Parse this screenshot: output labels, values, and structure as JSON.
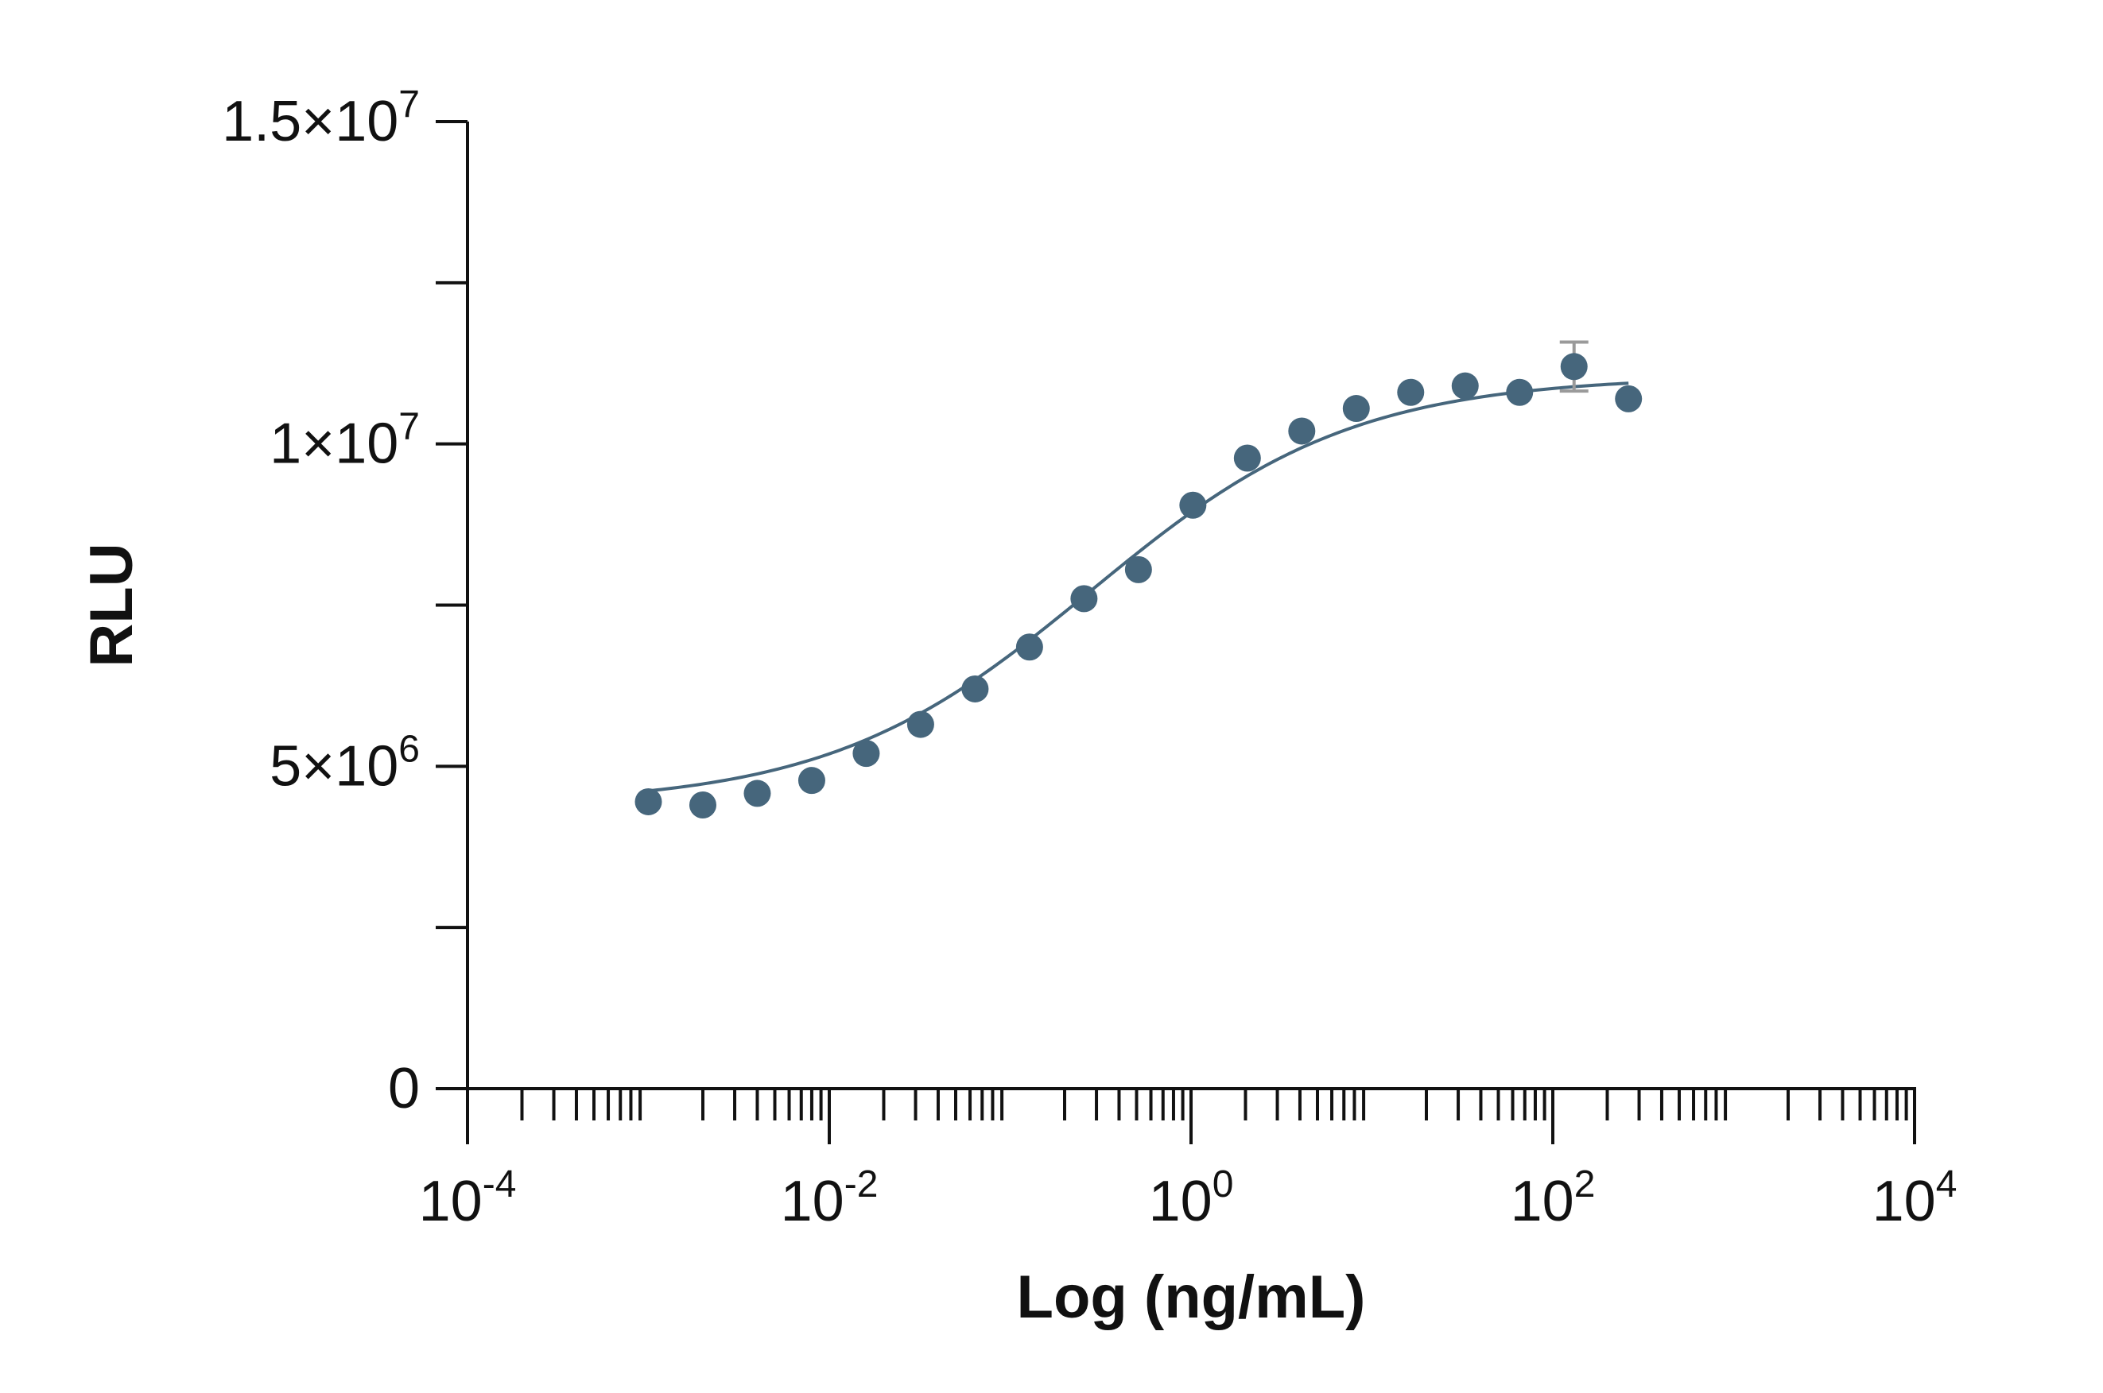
{
  "chart_data": {
    "type": "scatter",
    "title": "",
    "xlabel": "Log (ng/mL)",
    "ylabel": "RLU",
    "x_scale": "log",
    "xlim": [
      0.0001,
      10000
    ],
    "ylim": [
      0,
      15000000
    ],
    "grid": false,
    "legend": "none",
    "x_ticks": [
      {
        "value": 0.0001,
        "base": "10",
        "exp": "-4"
      },
      {
        "value": 0.01,
        "base": "10",
        "exp": "-2"
      },
      {
        "value": 1,
        "base": "10",
        "exp": "0"
      },
      {
        "value": 100,
        "base": "10",
        "exp": "2"
      },
      {
        "value": 10000,
        "base": "10",
        "exp": "4"
      }
    ],
    "y_ticks": [
      {
        "value": 0,
        "base": "0",
        "exp": ""
      },
      {
        "value": 2500000,
        "base": "",
        "exp": ""
      },
      {
        "value": 5000000,
        "base": "5×10",
        "exp": "6"
      },
      {
        "value": 7500000,
        "base": "",
        "exp": ""
      },
      {
        "value": 10000000,
        "base": "1×10",
        "exp": "7"
      },
      {
        "value": 12500000,
        "base": "",
        "exp": ""
      },
      {
        "value": 15000000,
        "base": "1.5×10",
        "exp": "7"
      }
    ],
    "series": [
      {
        "color": "#46667c",
        "x": [
          0.001,
          0.002,
          0.004,
          0.008,
          0.016,
          0.032,
          0.064,
          0.128,
          0.256,
          0.512,
          1.024,
          2.048,
          4.096,
          8.192,
          16.384,
          32.768,
          65.536,
          131.072,
          262.144
        ],
        "y": [
          4450000,
          4400000,
          4580000,
          4780000,
          5200000,
          5650000,
          6200000,
          6850000,
          7600000,
          8050000,
          9050000,
          9780000,
          10200000,
          10550000,
          10800000,
          10900000,
          10800000,
          11200000,
          10700000
        ],
        "error": [
          0,
          0,
          0,
          0,
          0,
          0,
          0,
          0,
          0,
          0,
          0,
          0,
          0,
          0,
          0,
          0,
          0,
          380000,
          0
        ]
      }
    ],
    "fit_curve": {
      "color": "#46667c",
      "model": "4PL",
      "bottom": 4400000,
      "top": 11050000,
      "ec50": 0.28,
      "hill": 0.6,
      "x_range": [
        0.001,
        262.144
      ]
    },
    "error_bar_color": "#9a9a9a"
  }
}
